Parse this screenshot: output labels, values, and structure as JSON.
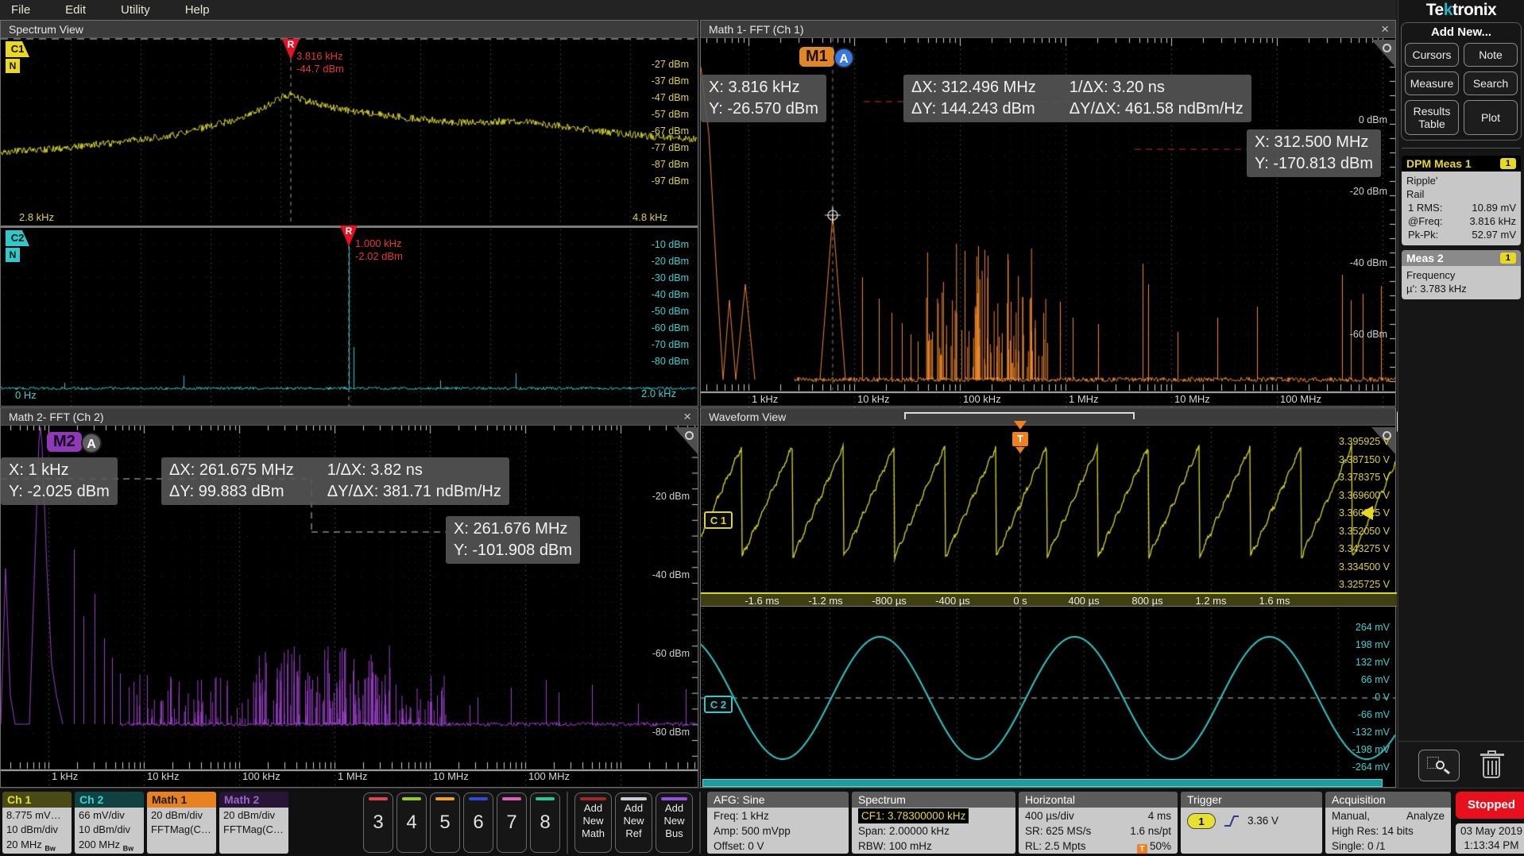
{
  "menu": {
    "items": [
      "File",
      "Edit",
      "Utility",
      "Help"
    ]
  },
  "brand": {
    "pre": "Te",
    "k": "k",
    "post": "tronix"
  },
  "colors": {
    "ch1_yellow": "#d8d820",
    "ch2_cyan": "#30c8c8",
    "math1_orange": "#f08828",
    "math2_purple": "#9a40c8",
    "marker_red": "#e81123",
    "stopped_red": "#e8101c",
    "accent_yellow": "#e8e030",
    "a_badge_blue": "#3878e0",
    "a_badge_gray": "#606060"
  },
  "spectrum_view": {
    "title": "Spectrum View",
    "t1": {
      "badge": "C1",
      "n": "N",
      "marker": "R",
      "marker_freq": "3.816 kHz",
      "marker_level": "-44.7 dBm",
      "y_labels": [
        "-27 dBm",
        "-37 dBm",
        "-47 dBm",
        "-57 dBm",
        "-67 dBm",
        "-77 dBm",
        "-87 dBm",
        "-97 dBm"
      ],
      "x_left": "2.8 kHz",
      "x_right": "4.8 kHz"
    },
    "t2": {
      "badge": "C2",
      "n": "N",
      "marker": "R",
      "marker_freq": "1.000 kHz",
      "marker_level": "-2.02 dBm",
      "y_labels": [
        "-10 dBm",
        "-20 dBm",
        "-30 dBm",
        "-40 dBm",
        "-50 dBm",
        "-60 dBm",
        "-70 dBm",
        "-80 dBm"
      ],
      "x_left": "0 Hz",
      "x_right": "2.0 kHz"
    }
  },
  "math1": {
    "title": "Math 1- FFT (Ch 1)",
    "close": "×",
    "m": "M1",
    "a": "A",
    "ro1_1": "X: 3.816 kHz",
    "ro1_2": "Y: -26.570 dBm",
    "ro2_dx": "ΔX: 312.496 MHz",
    "ro2_inv": "1/ΔX: 3.20 ns",
    "ro2_dy": "ΔY: 144.243 dBm",
    "ro2_slope": "ΔY/ΔX: 461.58 ndBm/Hz",
    "ro3_1": "X: 312.500 MHz",
    "ro3_2": "Y: -170.813 dBm",
    "y_labels": [
      "0 dBm",
      "-20 dBm",
      "-40 dBm",
      "-60 dBm"
    ],
    "x_labels": [
      "1 kHz",
      "10 kHz",
      "100 kHz",
      "1 MHz",
      "10 MHz",
      "100 MHz"
    ]
  },
  "math2": {
    "title": "Math 2- FFT (Ch 2)",
    "close": "×",
    "m": "M2",
    "a": "A",
    "ro1_1": "X: 1 kHz",
    "ro1_2": "Y: -2.025 dBm",
    "ro2_dx": "ΔX: 261.675 MHz",
    "ro2_inv": "1/ΔX: 3.82 ns",
    "ro2_dy": "ΔY: 99.883 dBm",
    "ro2_slope": "ΔY/ΔX: 381.71 ndBm/Hz",
    "ro3_1": "X: 261.676 MHz",
    "ro3_2": "Y: -101.908 dBm",
    "y_labels": [
      "-20 dBm",
      "-40 dBm",
      "-60 dBm",
      "-80 dBm"
    ],
    "x_labels": [
      "1 kHz",
      "10 kHz",
      "100 kHz",
      "1 MHz",
      "10 MHz",
      "100 MHz"
    ]
  },
  "waveform": {
    "title": "Waveform View",
    "trigger": "T",
    "ch1_badge": "C 1",
    "ch1_labels": [
      "3.395925 V",
      "3.387150 V",
      "3.378375 V",
      "3.369600 V",
      "3.360825 V",
      "3.352050 V",
      "3.343275 V",
      "3.334500 V",
      "3.325725 V"
    ],
    "time_labels": [
      "-1.6 ms",
      "-1.2 ms",
      "-800 µs",
      "-400 µs",
      "0 s",
      "400 µs",
      "800 µs",
      "1.2 ms",
      "1.6 ms"
    ],
    "ch2_badge": "C 2",
    "ch2_labels": [
      "264 mV",
      "198 mV",
      "132 mV",
      "66 mV",
      "0 V",
      "-66 mV",
      "-132 mV",
      "-198 mV",
      "-264 mV"
    ]
  },
  "sidebar": {
    "add_new": "Add New...",
    "buttons": [
      "Cursors",
      "Note",
      "Measure",
      "Search",
      "Results Table",
      "Plot"
    ],
    "dpm": {
      "title": "DPM Meas 1",
      "badge": "1",
      "line1": "Ripple'",
      "line2": "Rail",
      "rows": [
        {
          "k": "1 RMS:",
          "v": "10.89 mV"
        },
        {
          "k": "@Freq:",
          "v": "3.816 kHz"
        },
        {
          "k": "Pk-Pk:",
          "v": "52.97 mV"
        }
      ]
    },
    "meas2": {
      "title": "Meas 2",
      "badge": "1",
      "line1": "Frequency",
      "line2": "µ': 3.783 kHz"
    }
  },
  "bottom": {
    "channels": [
      {
        "name": "Ch 1",
        "l1": "8.775 mV…",
        "l2": "10 dBm/div",
        "l3": "20 MHz",
        "bw": "Bw"
      },
      {
        "name": "Ch 2",
        "l1": "66 mV/div",
        "l2": "10 dBm/div",
        "l3": "200 MHz",
        "bw": "Bw"
      },
      {
        "name": "Math 1",
        "l1": "20 dBm/div",
        "l2": "",
        "l3": "FFTMag(C…",
        "bw": ""
      },
      {
        "name": "Math 2",
        "l1": "20 dBm/div",
        "l2": "",
        "l3": "FFTMag(C…",
        "bw": ""
      }
    ],
    "scope_buttons": [
      {
        "n": "3",
        "color": "#d84858"
      },
      {
        "n": "4",
        "color": "#96c83c"
      },
      {
        "n": "5",
        "color": "#f0a030"
      },
      {
        "n": "6",
        "color": "#3048d8"
      },
      {
        "n": "7",
        "color": "#e060c0"
      },
      {
        "n": "8",
        "color": "#28c890"
      }
    ],
    "add_buttons": [
      {
        "l1": "Add",
        "l2": "New",
        "l3": "Math",
        "color": "#a02828"
      },
      {
        "l1": "Add",
        "l2": "New",
        "l3": "Ref",
        "color": "#c8ccd4"
      },
      {
        "l1": "Add",
        "l2": "New",
        "l3": "Bus",
        "color": "#9850e0"
      }
    ],
    "afg": {
      "title": "AFG: Sine",
      "r1": "Freq: 1 kHz",
      "r2": "Amp: 500 mVpp",
      "r3": "Offset: 0 V"
    },
    "spectrum": {
      "title": "Spectrum",
      "cf": "CF1: 3.78300000 kHz",
      "span": "Span: 2.00000 kHz",
      "rbw": "RBW: 100 mHz"
    },
    "horizontal": {
      "title": "Horizontal",
      "r1l": "400 µs/div",
      "r1r": "4 ms",
      "r2l": "SR: 625 MS/s",
      "r2r": "1.6 ns/pt",
      "r3l": "RL: 2.5 Mpts",
      "r3r": "50%",
      "t": "T"
    },
    "trigger": {
      "title": "Trigger",
      "source": "1",
      "level": "3.36 V"
    },
    "acquisition": {
      "title": "Acquisition",
      "r1a": "Manual,",
      "r1b": "Analyze",
      "r2": "High Res: 14 bits",
      "r3": "Single: 0 /1"
    },
    "status": "Stopped",
    "date": "03 May 2019",
    "time": "1:13:34 PM"
  }
}
